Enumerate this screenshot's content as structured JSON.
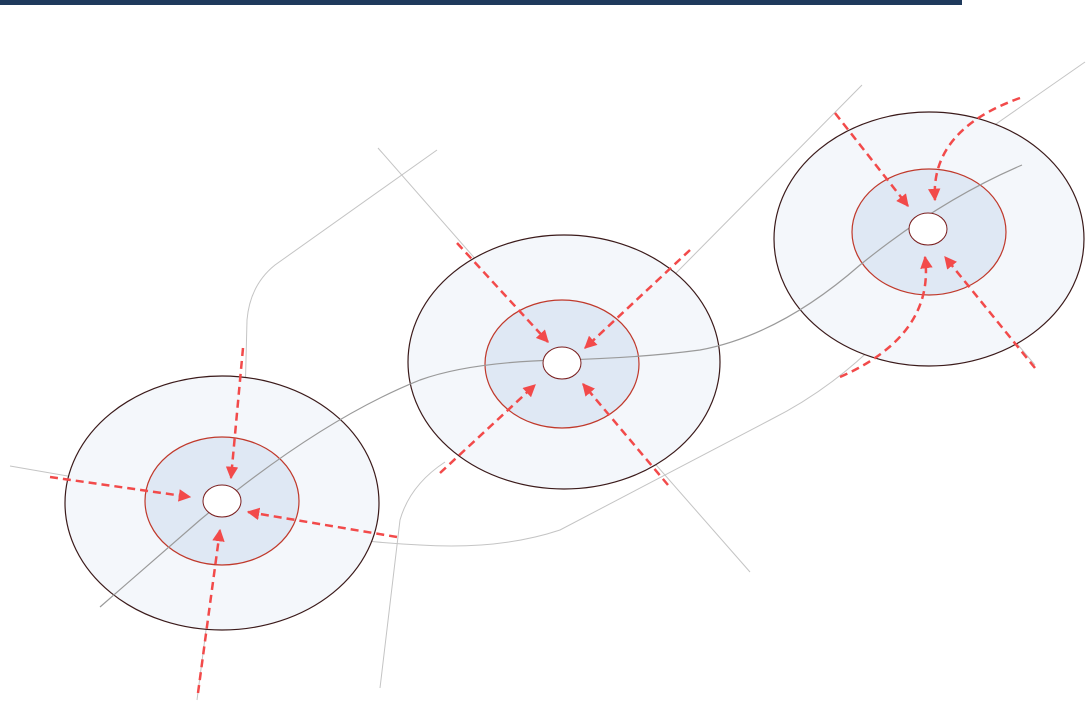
{
  "colors": {
    "header_bar": "#1f3a5c",
    "outer_ring_fill": "#f4f7fb",
    "outer_ring_stroke": "#3b1a1a",
    "inner_ring_fill": "#dfe8f4",
    "inner_ring_stroke": "#c0392b",
    "core_fill": "#ffffff",
    "core_stroke": "#7a1e1e",
    "transit_line": "#9a9a9a",
    "road": "#c4c4c4",
    "flow_arrow": "#f24a4a"
  },
  "icons": {
    "flow_arrow": "dashed-arrow-icon"
  }
}
